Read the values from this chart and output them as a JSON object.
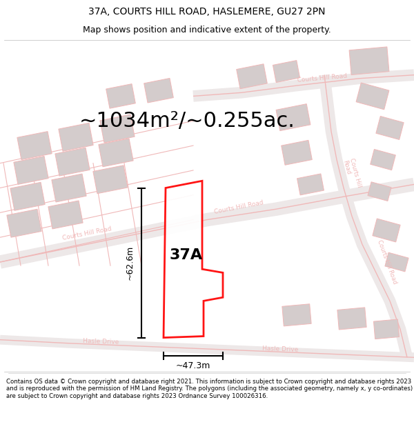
{
  "title": "37A, COURTS HILL ROAD, HASLEMERE, GU27 2PN",
  "subtitle": "Map shows position and indicative extent of the property.",
  "area_label": "~1034m²/~0.255ac.",
  "property_label": "37A",
  "width_label": "~47.3m",
  "height_label": "~62.6m",
  "footer": "Contains OS data © Crown copyright and database right 2021. This information is subject to Crown copyright and database rights 2023 and is reproduced with the permission of HM Land Registry. The polygons (including the associated geometry, namely x, y co-ordinates) are subject to Crown copyright and database rights 2023 Ordnance Survey 100026316.",
  "bg_color": "#ffffff",
  "map_bg": "#f5eeee",
  "property_color": "#ff0000",
  "road_color": "#f0b8b8",
  "road_fill": "#f5eaea",
  "building_color": "#d4cccc",
  "figsize": [
    6.0,
    6.25
  ],
  "dpi": 100,
  "title_fontsize": 10,
  "subtitle_fontsize": 9,
  "area_fontsize": 22,
  "label_fontsize": 16,
  "dim_fontsize": 9,
  "footer_fontsize": 6.2
}
